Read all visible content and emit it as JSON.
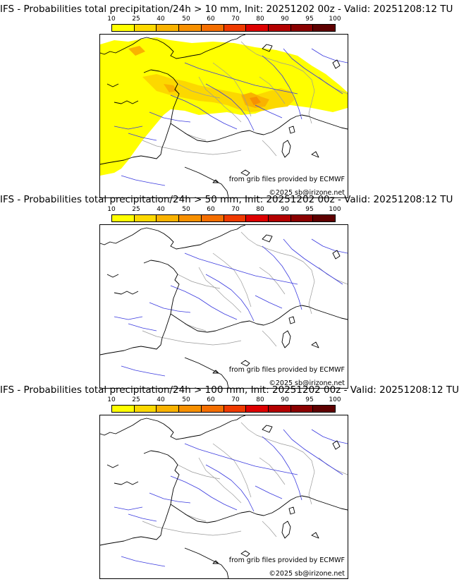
{
  "colorbar": {
    "ticks": [
      "10",
      "25",
      "40",
      "50",
      "60",
      "70",
      "80",
      "90",
      "95",
      "100"
    ],
    "colors": [
      "#ffff00",
      "#fcd800",
      "#f9b200",
      "#f79000",
      "#f46e00",
      "#ef3a00",
      "#dd0000",
      "#b30000",
      "#8a0000",
      "#5e0000"
    ]
  },
  "panels": [
    {
      "title": "IFS - Probabilities total precipitation/24h > 10 mm, Init: 20251202 00z - Valid: 20251208:12 TU",
      "credit_source": "from grib files provided by ECMWF",
      "credit_copyright": "©2025 sb@irizone.net",
      "precip_field": "present"
    },
    {
      "title": "IFS - Probabilities total precipitation/24h > 50 mm, Init: 20251202 00z - Valid: 20251208:12 TU",
      "credit_source": "from grib files provided by ECMWF",
      "credit_copyright": "©2025 sb@irizone.net",
      "precip_field": "none"
    },
    {
      "title": "IFS - Probabilities total precipitation/24h > 100 mm, Init: 20251202 00z - Valid: 20251208:12 TU",
      "credit_source": "from grib files provided by ECMWF",
      "credit_copyright": "©2025 sb@irizone.net",
      "precip_field": "none"
    }
  ],
  "map_colors": {
    "coast": "#000000",
    "rivers": "#3a3adf",
    "borders": "#9a9a9a"
  }
}
